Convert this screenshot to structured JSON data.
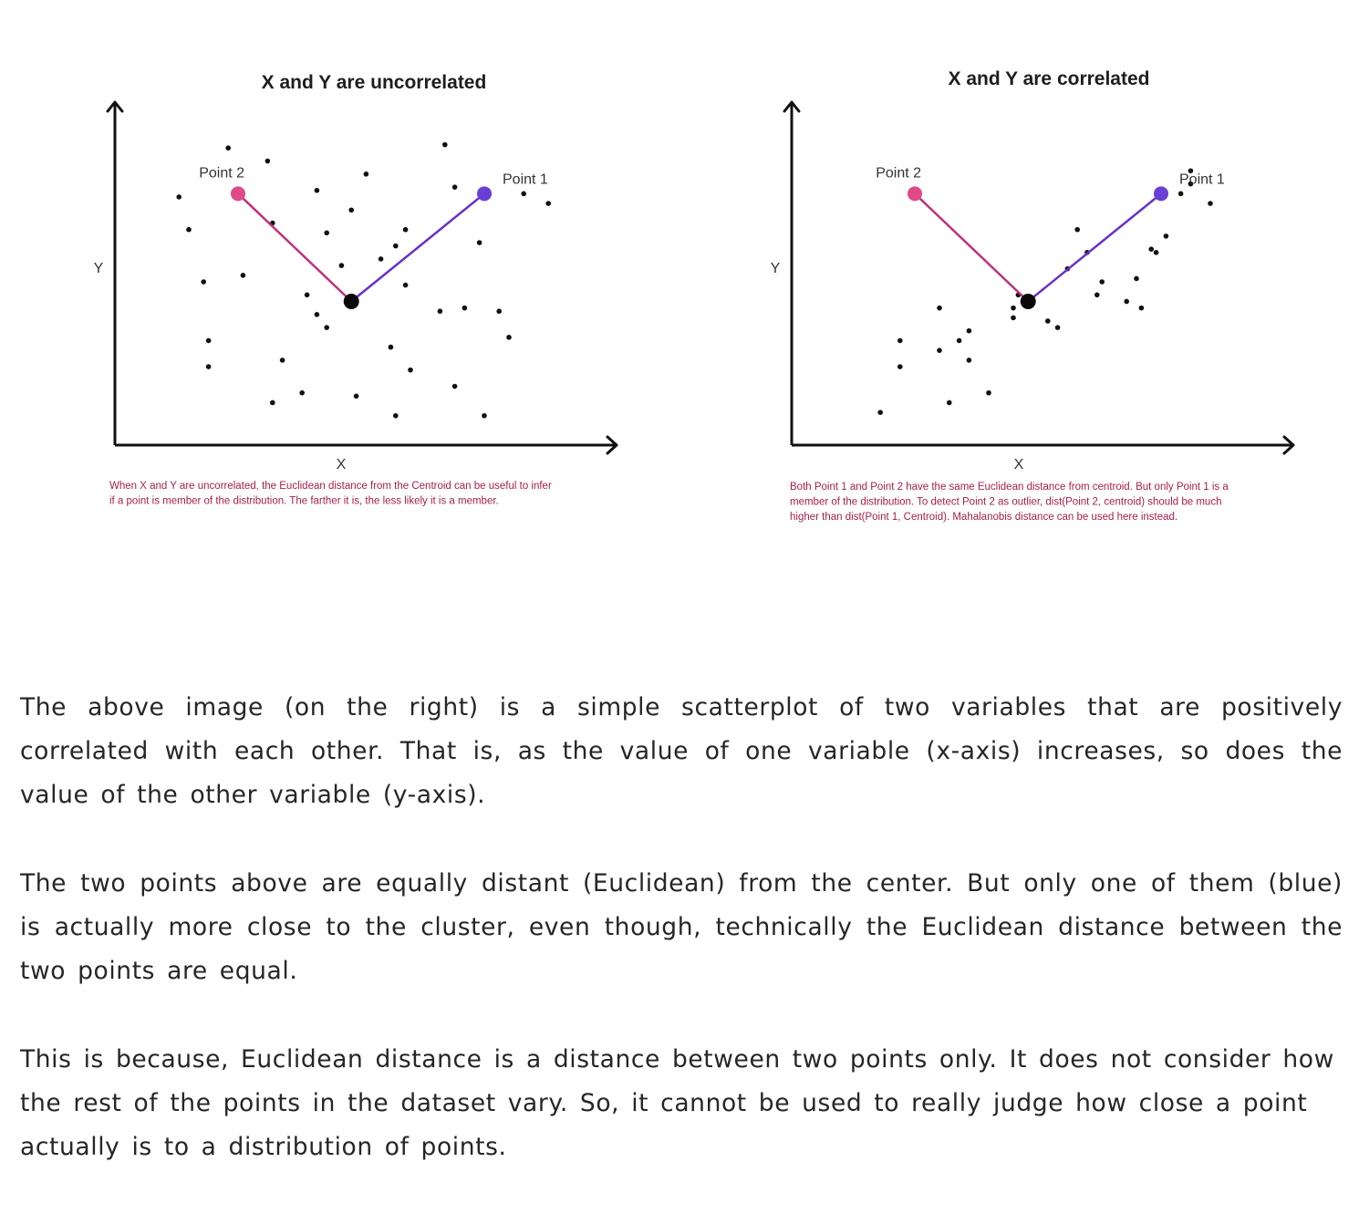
{
  "chart_data": [
    {
      "type": "scatter",
      "title": "X and Y are uncorrelated",
      "xlabel": "X",
      "ylabel": "Y",
      "xlim": [
        0,
        10
      ],
      "ylim": [
        0,
        10
      ],
      "grid": false,
      "series": [
        {
          "points": [
            [
              2.3,
              9.1
            ],
            [
              3.1,
              8.7
            ],
            [
              6.7,
              9.2
            ],
            [
              5.1,
              8.3
            ],
            [
              4.1,
              7.8
            ],
            [
              6.9,
              7.9
            ],
            [
              1.3,
              7.6
            ],
            [
              4.8,
              7.2
            ],
            [
              8.8,
              7.4
            ],
            [
              8.3,
              7.7
            ],
            [
              3.2,
              6.8
            ],
            [
              5.9,
              6.6
            ],
            [
              4.3,
              6.5
            ],
            [
              1.5,
              6.6
            ],
            [
              5.7,
              6.1
            ],
            [
              7.4,
              6.2
            ],
            [
              4.6,
              5.5
            ],
            [
              5.4,
              5.7
            ],
            [
              1.8,
              5.0
            ],
            [
              2.6,
              5.2
            ],
            [
              5.9,
              4.9
            ],
            [
              3.9,
              4.6
            ],
            [
              4.1,
              4.0
            ],
            [
              6.6,
              4.1
            ],
            [
              7.1,
              4.2
            ],
            [
              7.8,
              4.1
            ],
            [
              4.3,
              3.6
            ],
            [
              8.0,
              3.3
            ],
            [
              1.9,
              3.2
            ],
            [
              5.6,
              3.0
            ],
            [
              1.9,
              2.4
            ],
            [
              3.4,
              2.6
            ],
            [
              6.0,
              2.3
            ],
            [
              4.9,
              1.5
            ],
            [
              3.8,
              1.6
            ],
            [
              3.2,
              1.3
            ],
            [
              6.9,
              1.8
            ],
            [
              5.7,
              0.9
            ],
            [
              7.5,
              0.9
            ]
          ]
        }
      ],
      "centroid": [
        4.8,
        4.4
      ],
      "point1": {
        "label": "Point 1",
        "x": 7.5,
        "y": 7.7,
        "color": "#6a3fd6"
      },
      "point2": {
        "label": "Point 2",
        "x": 2.5,
        "y": 7.7,
        "color": "#e04a86"
      },
      "caption": [
        "When X and Y are uncorrelated, the Euclidean distance from the Centroid can be useful to infer",
        "if a point is member of the distribution. The farther it is, the less likely it is a member."
      ]
    },
    {
      "type": "scatter",
      "title": "X and Y are correlated",
      "xlabel": "X",
      "ylabel": "Y",
      "xlim": [
        0,
        10
      ],
      "ylim": [
        0,
        10
      ],
      "grid": false,
      "series": [
        {
          "points": [
            [
              8.1,
              8.4
            ],
            [
              8.1,
              8.0
            ],
            [
              7.9,
              7.7
            ],
            [
              8.5,
              7.4
            ],
            [
              5.8,
              6.6
            ],
            [
              6.0,
              5.9
            ],
            [
              7.3,
              6.0
            ],
            [
              7.0,
              5.1
            ],
            [
              7.6,
              6.4
            ],
            [
              5.6,
              5.4
            ],
            [
              6.3,
              5.0
            ],
            [
              7.4,
              5.9
            ],
            [
              6.2,
              4.6
            ],
            [
              6.8,
              4.4
            ],
            [
              7.1,
              4.2
            ],
            [
              4.6,
              4.6
            ],
            [
              4.5,
              4.2
            ],
            [
              3.0,
              4.2
            ],
            [
              5.2,
              3.8
            ],
            [
              5.4,
              3.6
            ],
            [
              4.5,
              3.9
            ],
            [
              3.6,
              3.5
            ],
            [
              2.2,
              3.2
            ],
            [
              3.0,
              2.9
            ],
            [
              3.4,
              3.2
            ],
            [
              3.6,
              2.6
            ],
            [
              2.2,
              2.4
            ],
            [
              4.0,
              1.6
            ],
            [
              3.2,
              1.3
            ],
            [
              1.8,
              1.0
            ]
          ]
        }
      ],
      "centroid": [
        4.8,
        4.4
      ],
      "point1": {
        "label": "Point 1",
        "x": 7.5,
        "y": 7.7,
        "color": "#6a3fd6"
      },
      "point2": {
        "label": "Point 2",
        "x": 2.5,
        "y": 7.7,
        "color": "#e04a86"
      },
      "caption": [
        "Both Point 1 and Point 2 have the same Euclidean distance from centroid. But only Point 1 is a",
        "member of the distribution. To detect Point 2 as outlier, dist(Point 2, centroid) should be much",
        "higher than dist(Point 1, Centroid). Mahalanobis distance can be used here instead."
      ]
    }
  ],
  "article": {
    "paragraphs": [
      "The above image (on the right) is a simple scatterplot of two variables that are positively correlated with each other. That is, as the value of one variable (x-axis) increases, so does the value of the other variable (y-axis).",
      "The two points above are equally distant (Euclidean) from the center. But only one of them (blue) is actually more close to the cluster, even though, technically the Euclidean distance between the two points are equal.",
      "This is because, Euclidean distance is a distance between two points only. It does not consider how the rest of the points in the dataset vary. So, it cannot be used to really judge how close a point actually is to a distribution of points."
    ]
  }
}
